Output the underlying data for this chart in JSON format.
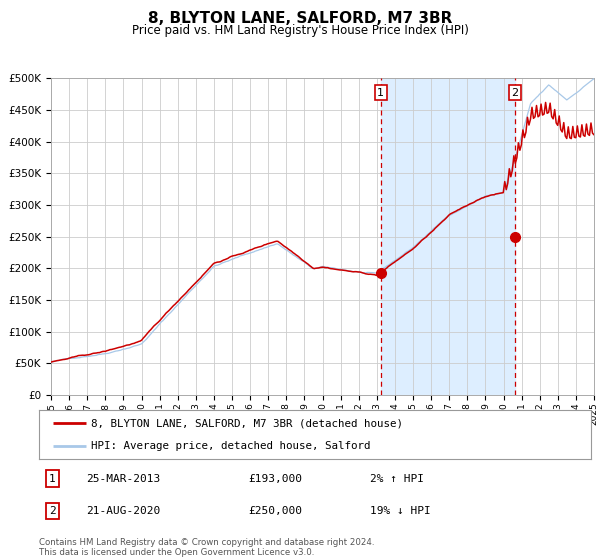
{
  "title": "8, BLYTON LANE, SALFORD, M7 3BR",
  "subtitle": "Price paid vs. HM Land Registry's House Price Index (HPI)",
  "legend_line1": "8, BLYTON LANE, SALFORD, M7 3BR (detached house)",
  "legend_line2": "HPI: Average price, detached house, Salford",
  "annotation1_date": "25-MAR-2013",
  "annotation1_price": "£193,000",
  "annotation1_hpi": "2% ↑ HPI",
  "annotation1_year": 2013.22,
  "annotation1_value": 193000,
  "annotation2_date": "21-AUG-2020",
  "annotation2_price": "£250,000",
  "annotation2_hpi": "19% ↓ HPI",
  "annotation2_year": 2020.63,
  "annotation2_value": 250000,
  "footer1": "Contains HM Land Registry data © Crown copyright and database right 2024.",
  "footer2": "This data is licensed under the Open Government Licence v3.0.",
  "ylim_max": 500000,
  "background_color": "#ffffff",
  "plot_bg_color": "#ffffff",
  "highlight_bg_color": "#ddeeff",
  "grid_color": "#cccccc",
  "hpi_line_color": "#a8c8e8",
  "price_line_color": "#cc0000",
  "vline_color": "#cc0000",
  "dot_color": "#cc0000",
  "title_fontsize": 11,
  "subtitle_fontsize": 9
}
